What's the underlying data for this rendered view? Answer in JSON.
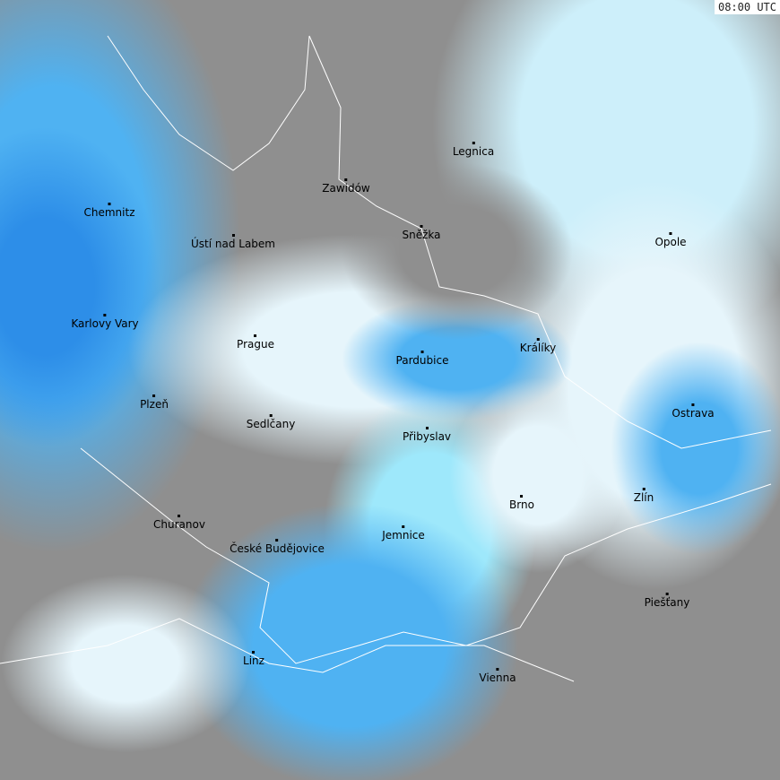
{
  "timestamp": "08:00 UTC",
  "colors": {
    "no_echo": "#8f8f8f",
    "light": "#e6f5fb",
    "cyan": "#9ee8fb",
    "blue": "#4fb2f2",
    "deep_blue": "#2d8ee8",
    "border": "#ffffff"
  },
  "cities": [
    {
      "name": "Legnica"
    },
    {
      "name": "Zawidów"
    },
    {
      "name": "Chemnitz"
    },
    {
      "name": "Ústí nad Labem"
    },
    {
      "name": "Sněžka"
    },
    {
      "name": "Opole"
    },
    {
      "name": "Karlovy Vary"
    },
    {
      "name": "Prague"
    },
    {
      "name": "Králíky"
    },
    {
      "name": "Pardubice"
    },
    {
      "name": "Plzeň"
    },
    {
      "name": "Sedlčany"
    },
    {
      "name": "Ostrava"
    },
    {
      "name": "Přibyslav"
    },
    {
      "name": "Zlín"
    },
    {
      "name": "Brno"
    },
    {
      "name": "Churanov"
    },
    {
      "name": "Jemnice"
    },
    {
      "name": "České Budějovice"
    },
    {
      "name": "Piešťany"
    },
    {
      "name": "Linz"
    },
    {
      "name": "Vienna"
    }
  ]
}
